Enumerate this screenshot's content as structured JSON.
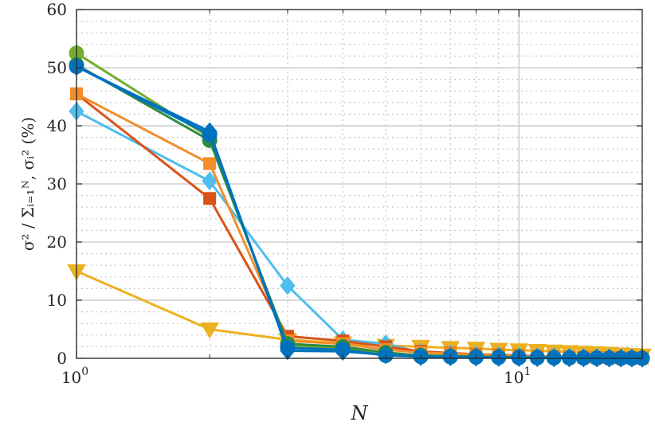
{
  "chart_data": {
    "type": "line",
    "xscale": "log",
    "xlim": [
      1,
      19
    ],
    "ylim": [
      0,
      60
    ],
    "xlabel": "N",
    "ylabel": "σ² / Σᵢ₌₁ᴺ, σᵢ² (%)",
    "x_ticks": [
      {
        "value": 1,
        "base": "10",
        "exp": "0"
      },
      {
        "value": 10,
        "base": "10",
        "exp": "1"
      }
    ],
    "y_ticks": [
      0,
      10,
      20,
      30,
      40,
      50,
      60
    ],
    "grid": true,
    "minor_grid": true,
    "x": [
      1,
      2,
      3,
      4,
      5,
      6,
      7,
      8,
      9,
      10,
      11,
      12,
      13,
      14,
      15,
      16,
      17,
      18,
      19
    ],
    "series": [
      {
        "color": "#77AC30",
        "marker": "circle",
        "values": [
          52.5,
          38,
          2.2,
          1.8,
          0.8,
          0.4,
          0.3,
          0.25,
          0.2,
          0.15,
          0.12,
          0.1,
          0.08,
          0.06,
          0.05,
          0.04,
          0.03,
          0.02,
          0.01
        ]
      },
      {
        "color": "#EDB120",
        "marker": "triangle-down",
        "values": [
          15,
          5,
          3.2,
          2.6,
          2.2,
          2.0,
          1.8,
          1.7,
          1.5,
          1.4,
          1.3,
          1.2,
          1.1,
          1.0,
          0.9,
          0.8,
          0.7,
          0.6,
          0.5
        ]
      },
      {
        "color": "#4DBEEE",
        "marker": "diamond",
        "values": [
          42.5,
          30.5,
          12.5,
          3.2,
          2.5,
          1.0,
          0.8,
          0.6,
          0.5,
          0.4,
          0.35,
          0.3,
          0.25,
          0.2,
          0.15,
          0.12,
          0.1,
          0.08,
          0.05
        ]
      },
      {
        "color": "#D95319",
        "marker": "square",
        "values": [
          45.5,
          27.5,
          3.8,
          3.0,
          2.0,
          1.2,
          0.9,
          0.7,
          0.6,
          0.5,
          0.4,
          0.3,
          0.25,
          0.2,
          0.15,
          0.12,
          0.1,
          0.08,
          0.05
        ]
      },
      {
        "color": "#F28E2B",
        "marker": "square",
        "values": [
          45.5,
          33.5,
          3.0,
          2.5,
          1.5,
          1.0,
          0.8,
          0.6,
          0.5,
          0.4,
          0.35,
          0.3,
          0.25,
          0.2,
          0.15,
          0.12,
          0.1,
          0.08,
          0.05
        ]
      },
      {
        "color": "#2E8B3E",
        "marker": "circle",
        "values": [
          50.5,
          37.5,
          2.5,
          2.0,
          1.0,
          0.5,
          0.4,
          0.3,
          0.25,
          0.2,
          0.15,
          0.12,
          0.1,
          0.08,
          0.06,
          0.05,
          0.04,
          0.03,
          0.02
        ]
      },
      {
        "color": "#0072BD",
        "marker": "diamond",
        "values": [
          50.2,
          39,
          1.3,
          1.2,
          0.6,
          0.3,
          0.25,
          0.2,
          0.15,
          0.12,
          0.1,
          0.08,
          0.06,
          0.05,
          0.04,
          0.03,
          0.02,
          0.02,
          0.01
        ]
      },
      {
        "color": "#0072BD",
        "marker": "circle",
        "values": [
          50.2,
          38.5,
          1.8,
          1.5,
          0.5,
          0.3,
          0.25,
          0.2,
          0.15,
          0.12,
          0.1,
          0.08,
          0.06,
          0.05,
          0.04,
          0.03,
          0.02,
          0.02,
          0.01
        ]
      }
    ]
  }
}
